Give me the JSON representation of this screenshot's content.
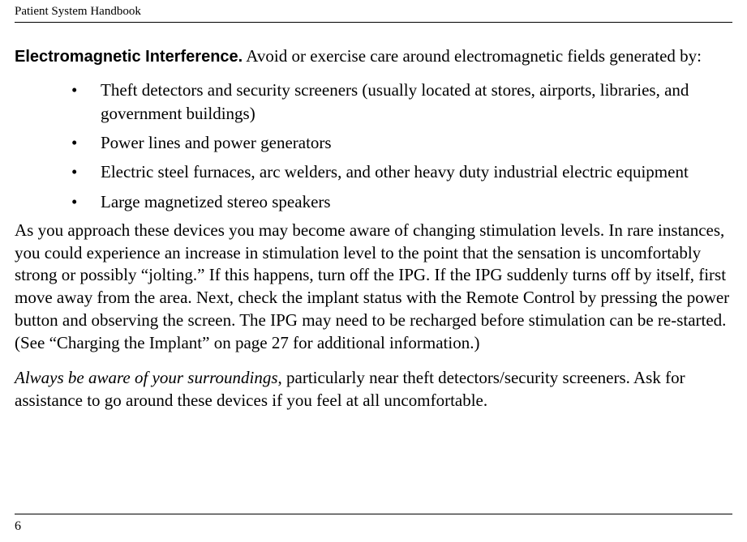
{
  "header": {
    "title": "Patient System Handbook"
  },
  "section": {
    "heading": "Electromagnetic Interference.",
    "intro": " Avoid or exercise care around electromagnetic fields generated by:"
  },
  "bullets": [
    "Theft detectors and security screeners (usually located at stores, airports, libraries, and government buildings)",
    "Power lines and power generators",
    "Electric steel furnaces, arc welders, and other heavy duty industrial electric equipment",
    "Large magnetized stereo speakers"
  ],
  "para1": "As you approach these devices you may become aware of changing stimulation levels. In rare instances, you could experience an increase in stimulation level to the point that the sensation is uncomfortably strong or possibly “jolting.” If this happens, turn off the IPG. If the IPG suddenly turns off by itself, first move away from the area. Next, check the implant status with the Remote Control by pressing the power button and observing the screen. The IPG may need to be recharged before stimulation can be re-started. (See “Charging the Implant” on page 27 for additional information.)",
  "para2": {
    "italic": "Always be aware of your surroundings",
    "rest": ", particularly near theft detectors/security screeners. Ask for assistance to go around these devices if you feel at all uncomfortable."
  },
  "footer": {
    "page": "6"
  },
  "bullet_char": "•"
}
